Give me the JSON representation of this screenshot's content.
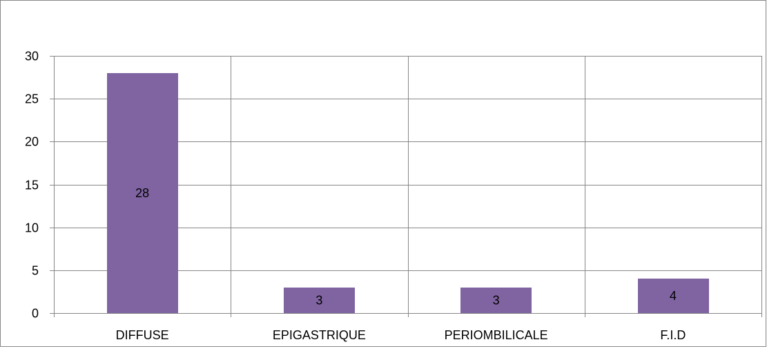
{
  "chart_data": {
    "type": "bar",
    "title": "",
    "xlabel": "",
    "ylabel": "",
    "categories": [
      "DIFFUSE",
      "EPIGASTRIQUE",
      "PERIOMBILICALE",
      "F.I.D"
    ],
    "values": [
      28,
      3,
      3,
      4
    ],
    "data_labels": [
      "28",
      "3",
      "3",
      "4"
    ],
    "ylim": [
      0,
      30
    ],
    "yticks": [
      0,
      5,
      10,
      15,
      20,
      25,
      30
    ],
    "ytick_labels": [
      "0",
      "5",
      "10",
      "15",
      "20",
      "25",
      "30"
    ],
    "grid": true,
    "vertical_gridlines": true,
    "legend": "none",
    "colors": {
      "bar": "#8064A2",
      "grid": "#868686",
      "axis": "#868686",
      "frame": "#868686",
      "text": "#000000"
    }
  }
}
